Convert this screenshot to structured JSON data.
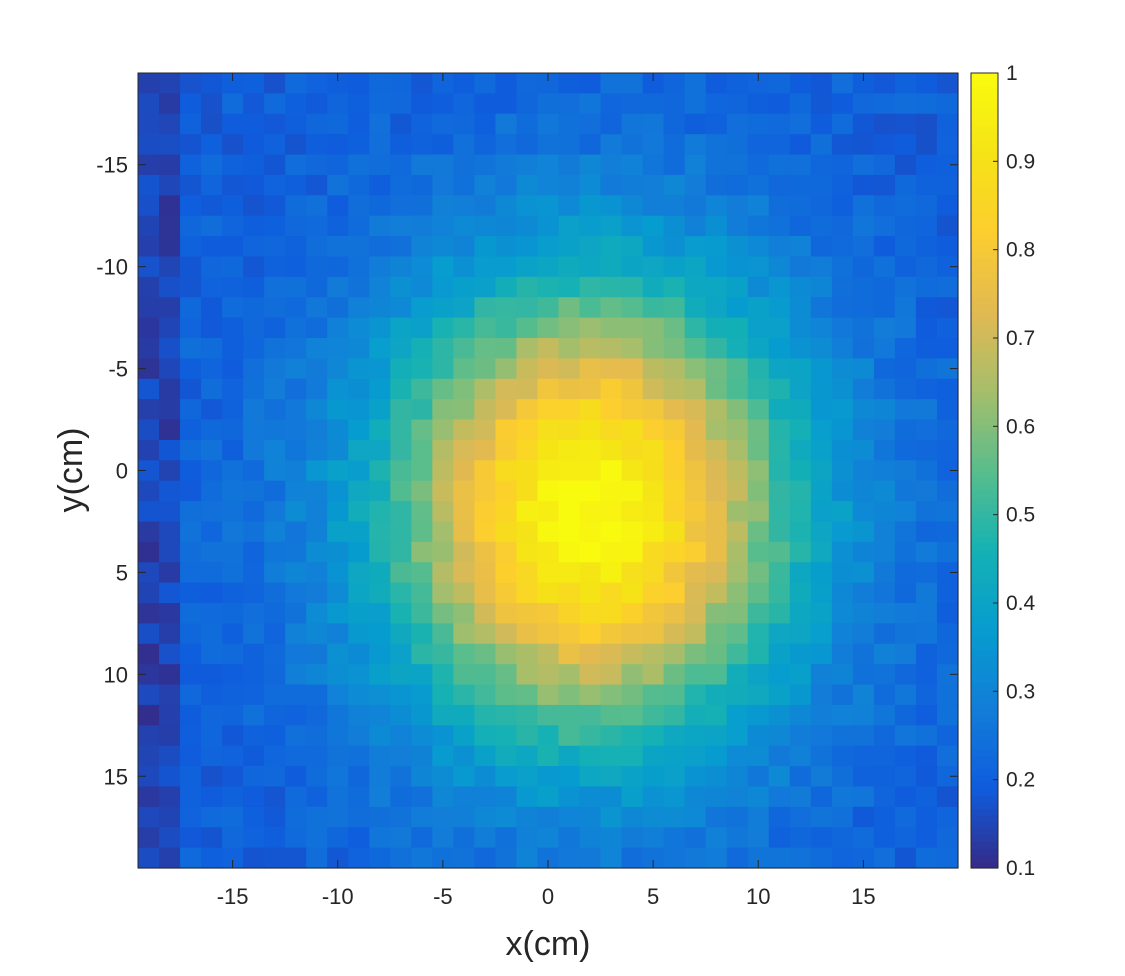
{
  "chart_data": {
    "type": "heatmap",
    "title": "",
    "xlabel": "x(cm)",
    "ylabel": "y(cm)",
    "xlim": [
      -19.5,
      19.5
    ],
    "ylim": [
      -19.5,
      19.5
    ],
    "y_axis_reversed": true,
    "grid": false,
    "colormap": "parula",
    "color_range": [
      0.1,
      1
    ],
    "x_ticks": [
      -15,
      -10,
      -5,
      0,
      5,
      10,
      15
    ],
    "x_tick_labels": [
      "-15",
      "-10",
      "-5",
      "0",
      "5",
      "10",
      "15"
    ],
    "y_ticks": [
      -15,
      -10,
      -5,
      0,
      5,
      10,
      15
    ],
    "y_tick_labels": [
      "-15",
      "-10",
      "-5",
      "0",
      "5",
      "10",
      "15"
    ],
    "colorbar": {
      "ticks": [
        0.1,
        0.2,
        0.3,
        0.4,
        0.5,
        0.6,
        0.7,
        0.8,
        0.9,
        1
      ],
      "tick_labels": [
        "0.1",
        "0.2",
        "0.3",
        "0.4",
        "0.5",
        "0.6",
        "0.7",
        "0.8",
        "0.9",
        "1"
      ],
      "location": "right"
    },
    "grid_cells": 39,
    "peak": {
      "x": 2,
      "y": 2,
      "value": 1
    },
    "spread": {
      "x": 9.5,
      "y": 11
    },
    "baseline": 0.2
  }
}
